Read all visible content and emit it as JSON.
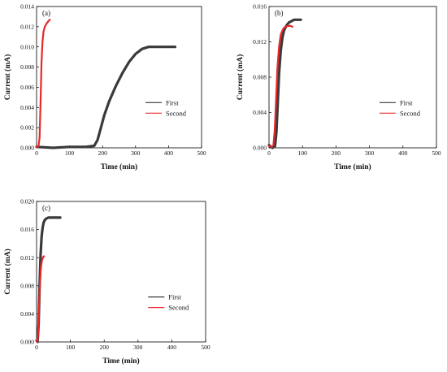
{
  "chart_data": [
    {
      "type": "line",
      "panel_label": "(a)",
      "xlabel": "Time (min)",
      "ylabel": "Current (mA)",
      "xlim": [
        0,
        500
      ],
      "ylim": [
        0,
        0.014
      ],
      "xticks": [
        "0",
        "100",
        "200",
        "300",
        "400",
        "500"
      ],
      "yticks": [
        "0.000",
        "0.002",
        "0.004",
        "0.006",
        "0.008",
        "0.010",
        "0.012",
        "0.014"
      ],
      "grid": false,
      "legend": "center-right",
      "series": [
        {
          "name": "First",
          "color": "#3a3a3a",
          "x": [
            0,
            50,
            100,
            150,
            175,
            185,
            195,
            205,
            220,
            240,
            260,
            280,
            300,
            320,
            340,
            360,
            380,
            400,
            420
          ],
          "y": [
            0.0001,
            0.0,
            0.0001,
            0.0001,
            0.0002,
            0.0008,
            0.002,
            0.0032,
            0.0046,
            0.0061,
            0.0074,
            0.0085,
            0.0093,
            0.0098,
            0.01,
            0.01,
            0.01,
            0.01,
            0.01
          ]
        },
        {
          "name": "Second",
          "color": "#e8282a",
          "x": [
            0,
            3,
            6,
            9,
            12,
            15,
            18,
            21,
            25,
            30,
            35,
            40
          ],
          "y": [
            0.0001,
            0.0001,
            0.0002,
            0.001,
            0.0045,
            0.0085,
            0.0105,
            0.0115,
            0.012,
            0.0123,
            0.0125,
            0.0127
          ]
        }
      ]
    },
    {
      "type": "line",
      "panel_label": "(b)",
      "xlabel": "Time (min)",
      "ylabel": "Current (mA)",
      "xlim": [
        0,
        500
      ],
      "ylim": [
        0,
        0.016
      ],
      "xticks": [
        "0",
        "100",
        "200",
        "300",
        "400",
        "500"
      ],
      "yticks": [
        "0.000",
        "0.004",
        "0.008",
        "0.012",
        "0.016"
      ],
      "grid": false,
      "legend": "center-right",
      "series": [
        {
          "name": "First",
          "color": "#3a3a3a",
          "x": [
            0,
            10,
            18,
            22,
            26,
            30,
            35,
            40,
            45,
            50,
            55,
            60,
            65,
            70,
            75,
            80,
            85,
            90,
            95
          ],
          "y": [
            0.0003,
            0.0,
            0.0002,
            0.0018,
            0.005,
            0.0085,
            0.011,
            0.0125,
            0.0133,
            0.0137,
            0.014,
            0.0142,
            0.0143,
            0.0144,
            0.0145,
            0.0145,
            0.0145,
            0.0145,
            0.0145
          ]
        },
        {
          "name": "Second",
          "color": "#e8282a",
          "x": [
            0,
            8,
            13,
            17,
            21,
            25,
            30,
            35,
            40,
            45,
            50,
            55,
            60,
            65,
            70
          ],
          "y": [
            0.0002,
            0.0001,
            0.0003,
            0.002,
            0.0055,
            0.009,
            0.0115,
            0.0128,
            0.0133,
            0.0136,
            0.0137,
            0.0138,
            0.0138,
            0.0138,
            0.0137
          ]
        }
      ]
    },
    {
      "type": "line",
      "panel_label": "(c)",
      "xlabel": "Time (min)",
      "ylabel": "Current (mA)",
      "xlim": [
        0,
        500
      ],
      "ylim": [
        0,
        0.02
      ],
      "xticks": [
        "0",
        "100",
        "200",
        "300",
        "400",
        "500"
      ],
      "yticks": [
        "0.000",
        "0.004",
        "0.008",
        "0.012",
        "0.016",
        "0.020"
      ],
      "grid": false,
      "legend": "center-right",
      "series": [
        {
          "name": "First",
          "color": "#3a3a3a",
          "x": [
            0,
            3,
            6,
            9,
            12,
            15,
            18,
            21,
            25,
            30,
            35,
            40,
            50,
            60,
            70
          ],
          "y": [
            0.0002,
            0.0,
            0.0025,
            0.008,
            0.0125,
            0.015,
            0.0163,
            0.017,
            0.0174,
            0.0176,
            0.0177,
            0.0177,
            0.0177,
            0.0177,
            0.0177
          ]
        },
        {
          "name": "Second",
          "color": "#e8282a",
          "x": [
            0,
            2,
            4,
            6,
            8,
            10,
            12,
            14,
            16,
            18,
            20,
            22
          ],
          "y": [
            0.0002,
            0.0,
            0.0008,
            0.003,
            0.006,
            0.0085,
            0.01,
            0.011,
            0.0116,
            0.0119,
            0.0121,
            0.0122
          ]
        }
      ]
    }
  ]
}
